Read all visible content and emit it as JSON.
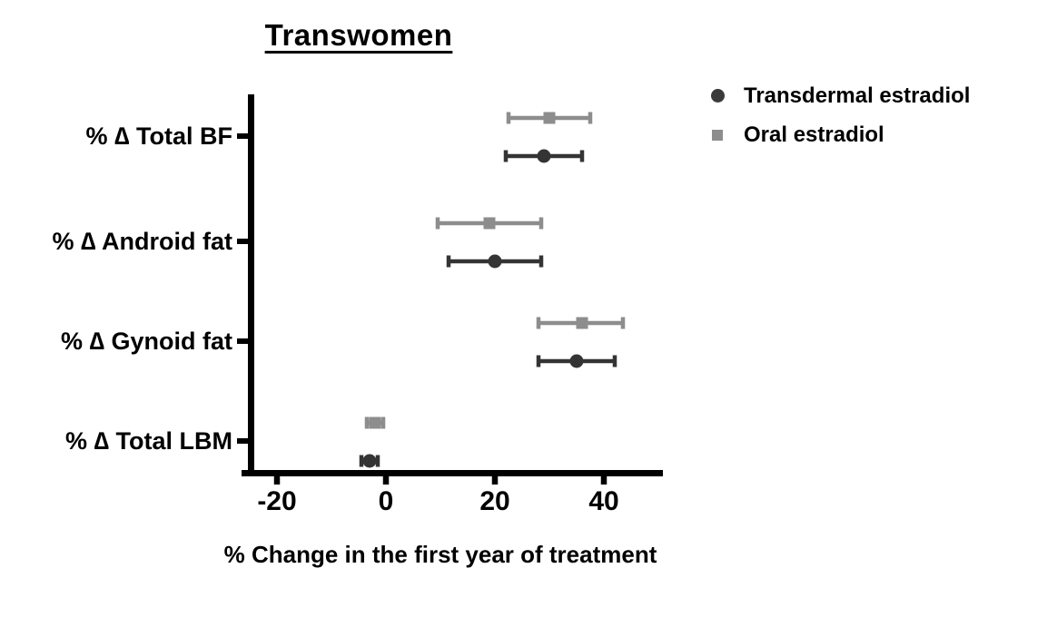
{
  "title": "Transwomen",
  "xlabel": "% Change in the first year of treatment",
  "legend": [
    {
      "label": "Transdermal estradiol",
      "marker": "circle",
      "color": "#3a3a3a"
    },
    {
      "label": "Oral estradiol",
      "marker": "square",
      "color": "#8d8d8d"
    }
  ],
  "axis_color": "#000000",
  "chart_data": {
    "type": "scatter",
    "subtype": "horizontal-point-estimates-with-error-bars",
    "title": "Transwomen",
    "xlabel": "% Change in the first year of treatment",
    "xlim": [
      -26,
      51
    ],
    "xticks": [
      -20,
      0,
      20,
      40
    ],
    "grid": false,
    "legend_position": "top-right-outside",
    "categories": [
      "% ∆ Total BF",
      "% ∆ Android fat",
      "% ∆ Gynoid fat",
      "% ∆ Total LBM"
    ],
    "series": [
      {
        "name": "Oral estradiol",
        "marker": "square",
        "color": "#8d8d8d",
        "values": [
          30,
          19,
          36,
          -2
        ],
        "ci_low": [
          22.5,
          9.5,
          28,
          -3.5
        ],
        "ci_high": [
          37.5,
          28.5,
          43.5,
          -0.5
        ]
      },
      {
        "name": "Transdermal estradiol",
        "marker": "circle",
        "color": "#343434",
        "values": [
          29,
          20,
          35,
          -3
        ],
        "ci_low": [
          22,
          11.5,
          28,
          -4.5
        ],
        "ci_high": [
          36,
          28.5,
          42,
          -1.5
        ]
      }
    ]
  }
}
